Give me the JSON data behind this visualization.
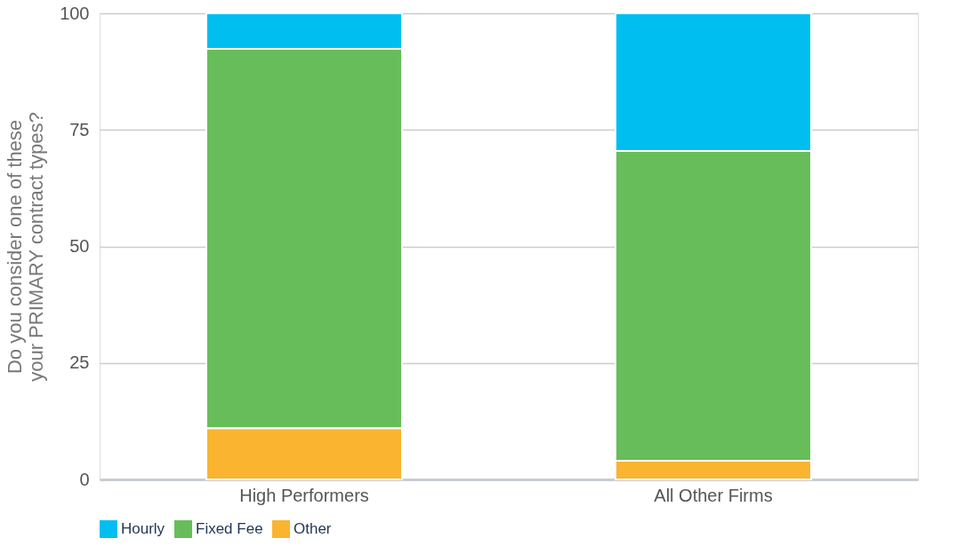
{
  "chart_data": {
    "type": "bar",
    "stacked": true,
    "ylabel": "Do you consider one of these\nyour PRIMARY contract types?",
    "categories": [
      "High Performers",
      "All Other Firms"
    ],
    "series": [
      {
        "name": "Other",
        "color": "#fab430",
        "values": [
          11.0,
          4.0
        ]
      },
      {
        "name": "Fixed Fee",
        "color": "#68bd5b",
        "values": [
          81.4,
          66.5
        ]
      },
      {
        "name": "Hourly",
        "color": "#00bff0",
        "values": [
          7.6,
          29.5
        ]
      }
    ],
    "ylim": [
      0,
      100
    ],
    "yticks": [
      0,
      25,
      50,
      75,
      100
    ],
    "grid": "y",
    "legend": "bottom"
  }
}
